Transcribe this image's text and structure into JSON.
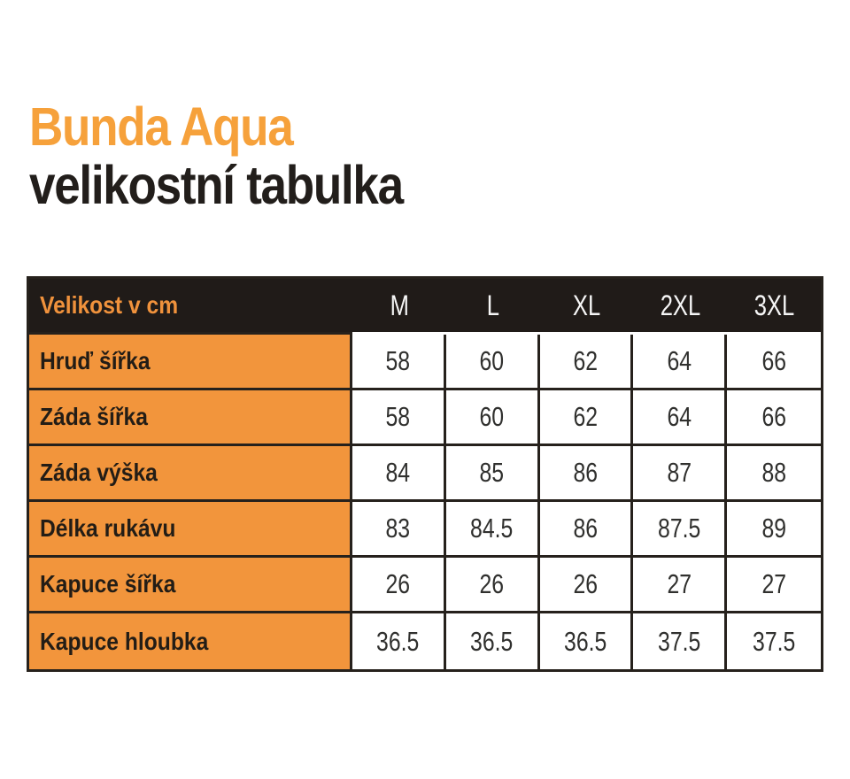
{
  "page": {
    "title_line1": "Bunda Aqua",
    "title_line2": "velikostní tabulka"
  },
  "colors": {
    "accent_orange_title": "#F6A13B",
    "cell_orange": "#F2953C",
    "header_bg": "#201B18",
    "header_label_orange": "#F0923C",
    "border_dark": "#26211C",
    "text_dark": "#231D16"
  },
  "table": {
    "header": {
      "label": "Velikost v cm",
      "sizes": [
        "M",
        "L",
        "XL",
        "2XL",
        "3XL"
      ]
    },
    "rows": [
      {
        "label": "Hruď šířka",
        "values": [
          "58",
          "60",
          "62",
          "64",
          "66"
        ]
      },
      {
        "label": "Záda šířka",
        "values": [
          "58",
          "60",
          "62",
          "64",
          "66"
        ]
      },
      {
        "label": "Záda výška",
        "values": [
          "84",
          "85",
          "86",
          "87",
          "88"
        ]
      },
      {
        "label": "Délka rukávu",
        "values": [
          "83",
          "84.5",
          "86",
          "87.5",
          "89"
        ]
      },
      {
        "label": "Kapuce šířka",
        "values": [
          "26",
          "26",
          "26",
          "27",
          "27"
        ]
      },
      {
        "label": "Kapuce hloubka",
        "values": [
          "36.5",
          "36.5",
          "36.5",
          "37.5",
          "37.5"
        ]
      }
    ]
  }
}
